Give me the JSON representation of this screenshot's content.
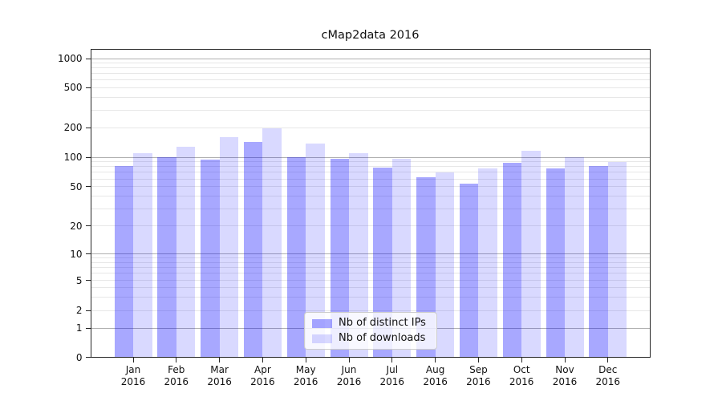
{
  "title": "cMap2data 2016",
  "chart_data": {
    "type": "bar",
    "title": "cMap2data 2016",
    "categories": [
      "Jan 2016",
      "Feb 2016",
      "Mar 2016",
      "Apr 2016",
      "May 2016",
      "Jun 2016",
      "Jul 2016",
      "Aug 2016",
      "Sep 2016",
      "Oct 2016",
      "Nov 2016",
      "Dec 2016"
    ],
    "series": [
      {
        "name": "Nb of distinct IPs",
        "color": "rgba(0,0,255,0.34)",
        "values": [
          82,
          100,
          94,
          144,
          100,
          96,
          78,
          62,
          54,
          87,
          77,
          81
        ]
      },
      {
        "name": "Nb of downloads",
        "color": "rgba(0,0,255,0.15)",
        "values": [
          110,
          128,
          161,
          197,
          137,
          110,
          97,
          70,
          77,
          116,
          100,
          89
        ]
      }
    ],
    "xlabel": "",
    "ylabel": "",
    "yscale": "symlog",
    "y_ticks": [
      0,
      1,
      2,
      5,
      10,
      20,
      50,
      100,
      200,
      500,
      1000
    ],
    "ylim": [
      0,
      1270
    ],
    "grid": "on",
    "legend_position": "lower center"
  },
  "colors": {
    "bar_distinct_ips": "#a6a6f7",
    "bar_downloads": "#d9d9fa",
    "grid_major": "#b0b0b0",
    "grid_minor": "#e7e7e7",
    "axes": "#262626"
  }
}
